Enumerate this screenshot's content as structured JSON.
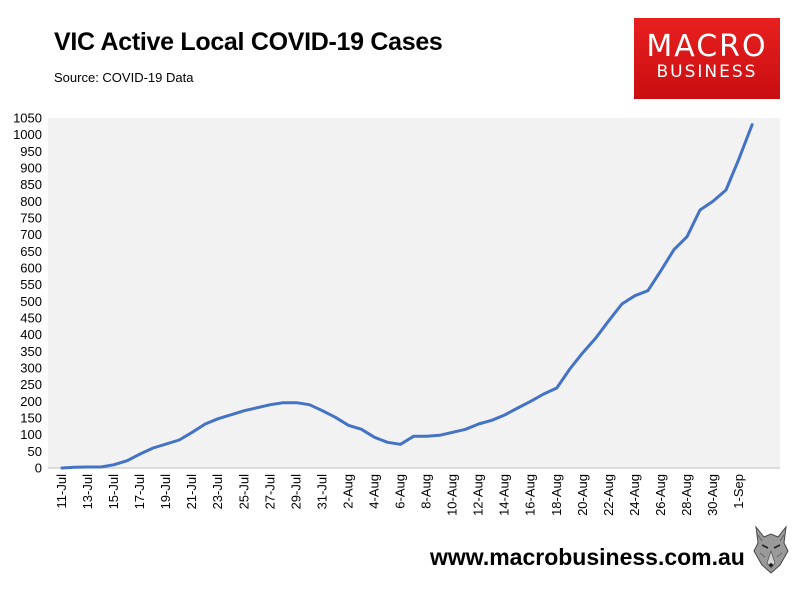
{
  "header": {
    "title": "VIC Active Local COVID-19 Cases",
    "source": "Source: COVID-19 Data"
  },
  "logo": {
    "line1": "MACRO",
    "line2": "BUSINESS",
    "color": "#e21c1c"
  },
  "footer": {
    "url": "www.macrobusiness.com.au",
    "mascot_icon": "wolf-icon"
  },
  "chart_data": {
    "type": "line",
    "title": "VIC Active Local COVID-19 Cases",
    "xlabel": "",
    "ylabel": "",
    "ylim": [
      0,
      1050
    ],
    "ytick_step": 50,
    "grid": false,
    "plot_background": "#f2f2f2",
    "line_color": "#4472c4",
    "x_tick_labels": [
      "11-Jul",
      "13-Jul",
      "15-Jul",
      "17-Jul",
      "19-Jul",
      "21-Jul",
      "23-Jul",
      "25-Jul",
      "27-Jul",
      "29-Jul",
      "31-Jul",
      "2-Aug",
      "4-Aug",
      "6-Aug",
      "8-Aug",
      "10-Aug",
      "12-Aug",
      "14-Aug",
      "16-Aug",
      "18-Aug",
      "20-Aug",
      "22-Aug",
      "24-Aug",
      "26-Aug",
      "28-Aug",
      "30-Aug",
      "1-Sep"
    ],
    "series": [
      {
        "x": [
          "11-Jul",
          "12-Jul",
          "13-Jul",
          "14-Jul",
          "15-Jul",
          "16-Jul",
          "17-Jul",
          "18-Jul",
          "19-Jul",
          "20-Jul",
          "21-Jul",
          "22-Jul",
          "23-Jul",
          "24-Jul",
          "25-Jul",
          "26-Jul",
          "27-Jul",
          "28-Jul",
          "29-Jul",
          "30-Jul",
          "31-Jul",
          "1-Aug",
          "2-Aug",
          "3-Aug",
          "4-Aug",
          "5-Aug",
          "6-Aug",
          "7-Aug",
          "8-Aug",
          "9-Aug",
          "10-Aug",
          "11-Aug",
          "12-Aug",
          "13-Aug",
          "14-Aug",
          "15-Aug",
          "16-Aug",
          "17-Aug",
          "18-Aug",
          "19-Aug",
          "20-Aug",
          "21-Aug",
          "22-Aug",
          "23-Aug",
          "24-Aug",
          "25-Aug",
          "26-Aug",
          "27-Aug",
          "28-Aug",
          "29-Aug",
          "30-Aug",
          "31-Aug",
          "1-Sep",
          "2-Sep"
        ],
        "values": [
          0,
          2,
          3,
          3,
          10,
          22,
          42,
          60,
          72,
          84,
          107,
          132,
          148,
          160,
          172,
          181,
          190,
          196,
          196,
          190,
          172,
          152,
          128,
          116,
          92,
          77,
          71,
          95,
          95,
          98,
          107,
          116,
          132,
          143,
          159,
          180,
          200,
          222,
          240,
          297,
          346,
          390,
          442,
          492,
          517,
          532,
          592,
          655,
          694,
          774,
          800,
          834,
          928,
          1030
        ]
      }
    ]
  }
}
